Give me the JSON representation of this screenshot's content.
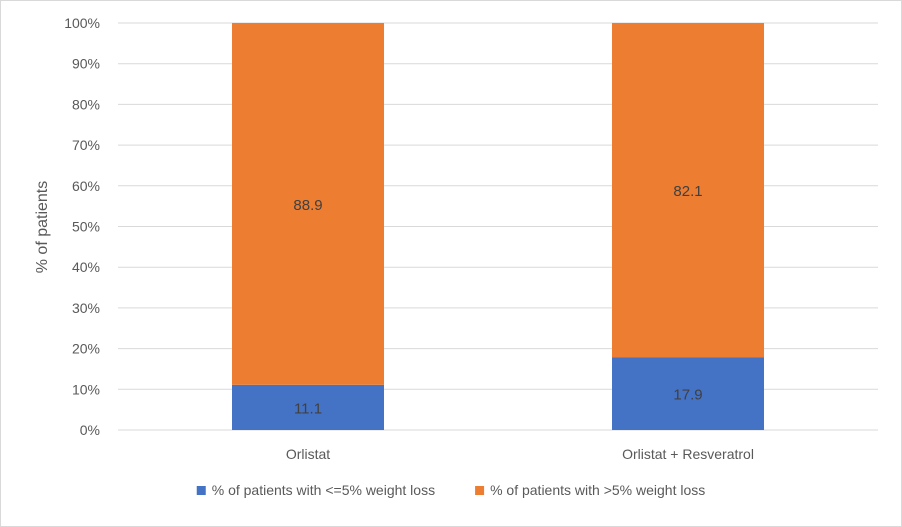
{
  "chart_data": {
    "type": "bar",
    "stacked": true,
    "categories": [
      "Orlistat",
      "Orlistat + Resveratrol"
    ],
    "series": [
      {
        "name": "% of patients with <=5% weight loss",
        "values": [
          11.1,
          17.9
        ],
        "color": "#4472C4"
      },
      {
        "name": "% of patients with >5% weight loss",
        "values": [
          88.9,
          82.1
        ],
        "color": "#ED7D31"
      }
    ],
    "ylabel": "% of patients",
    "ylim": [
      0,
      100
    ],
    "yticks": [
      "0%",
      "10%",
      "20%",
      "30%",
      "40%",
      "50%",
      "60%",
      "70%",
      "80%",
      "90%",
      "100%"
    ],
    "grid": true,
    "legend": "bottom",
    "data_labels": true,
    "gridline_color": "#d9d9d9"
  }
}
